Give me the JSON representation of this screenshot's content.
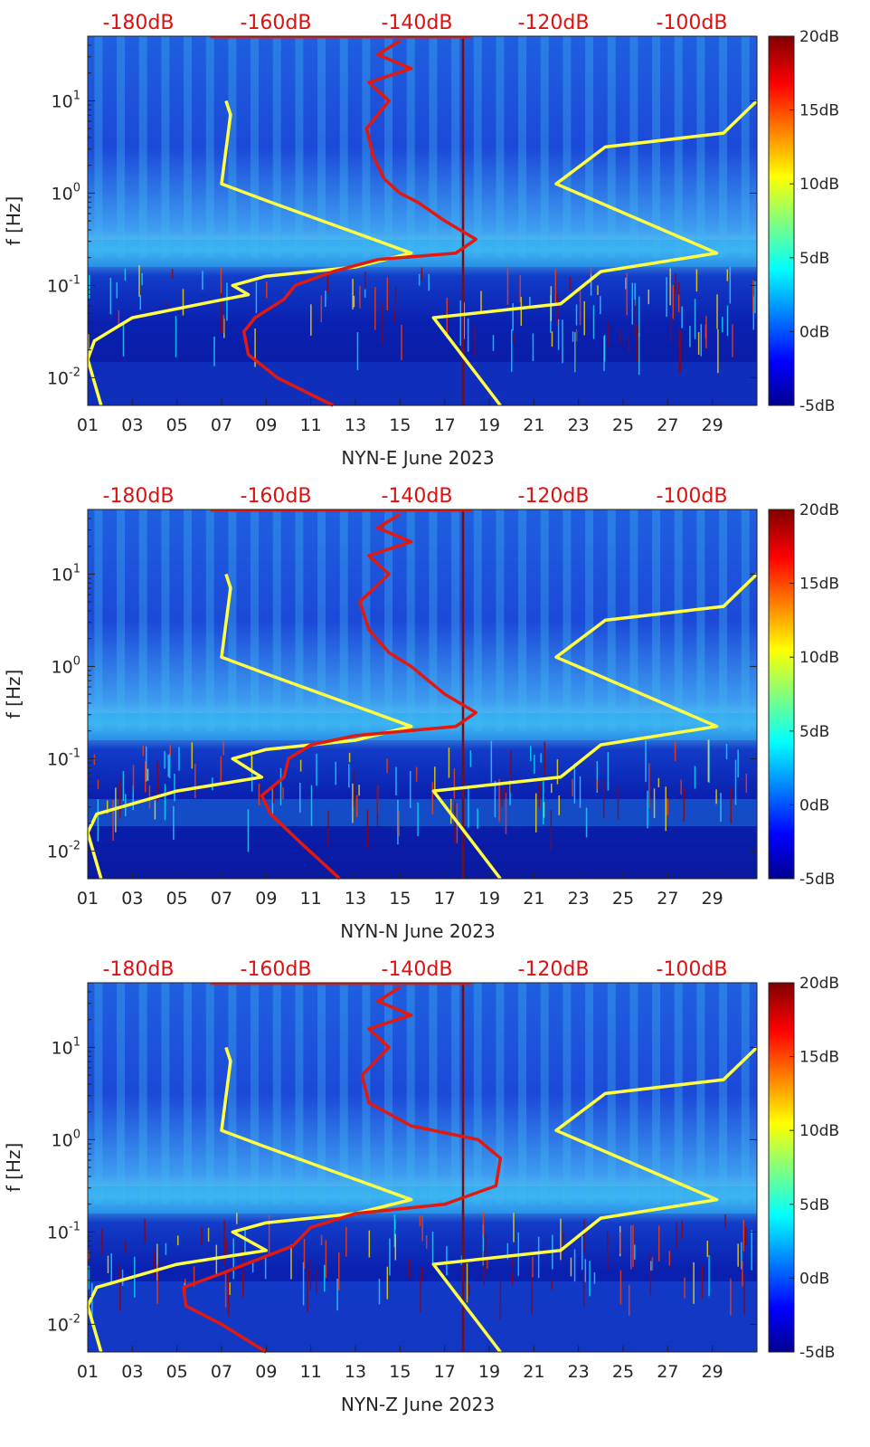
{
  "chart_data": [
    {
      "type": "heatmap",
      "xlabel": "NYN-E June 2023",
      "ylabel": "f [Hz]",
      "x_tick_labels": [
        "01",
        "03",
        "05",
        "07",
        "09",
        "11",
        "13",
        "15",
        "17",
        "19",
        "21",
        "23",
        "25",
        "27",
        "29"
      ],
      "y_tick_labels": [
        "10-2",
        "10-1",
        "100",
        "101"
      ],
      "top_axis_labels": [
        "-180dB",
        "-160dB",
        "-140dB",
        "-120dB",
        "-100dB"
      ],
      "colorbar": {
        "labels": [
          "20dB",
          "15dB",
          "10dB",
          "5dB",
          "0dB",
          "-5dB"
        ],
        "range": [
          -5,
          20
        ],
        "colormap": "jet"
      },
      "xlim": [
        1,
        31
      ],
      "ylim_log10": [
        -2.3,
        1.7
      ],
      "series": [
        {
          "color": "#ffff44",
          "points": [
            [
              7.2,
              1.0
            ],
            [
              7.4,
              0.85
            ],
            [
              7.0,
              0.1
            ],
            [
              9,
              -0.08
            ],
            [
              13.8,
              -0.5
            ],
            [
              15.5,
              -0.65
            ],
            [
              13,
              -0.8
            ],
            [
              9,
              -0.9
            ],
            [
              7.5,
              -1.0
            ],
            [
              8.2,
              -1.1
            ],
            [
              6.5,
              -1.18
            ],
            [
              3,
              -1.35
            ],
            [
              1.3,
              -1.6
            ],
            [
              1,
              -1.8
            ],
            [
              1.6,
              -2.3
            ]
          ]
        },
        {
          "color": "#ffff44",
          "points": [
            [
              31,
              1.0
            ],
            [
              29.5,
              0.65
            ],
            [
              24.2,
              0.5
            ],
            [
              22,
              0.1
            ],
            [
              29.2,
              -0.65
            ],
            [
              24,
              -0.85
            ],
            [
              22.2,
              -1.2
            ],
            [
              16.5,
              -1.35
            ],
            [
              19.5,
              -2.3
            ]
          ]
        },
        {
          "color": "#e01a10",
          "points": [
            [
              15,
              1.65
            ],
            [
              14,
              1.5
            ],
            [
              15.5,
              1.35
            ],
            [
              13.6,
              1.2
            ],
            [
              14.5,
              1.0
            ],
            [
              13.5,
              0.7
            ],
            [
              13.8,
              0.4
            ],
            [
              14.3,
              0.15
            ],
            [
              15,
              0.0
            ],
            [
              15.8,
              -0.1
            ],
            [
              17,
              -0.3
            ],
            [
              18.4,
              -0.5
            ],
            [
              17.5,
              -0.65
            ],
            [
              14,
              -0.72
            ],
            [
              12,
              -0.85
            ],
            [
              10.3,
              -1.0
            ],
            [
              9.8,
              -1.15
            ],
            [
              8.5,
              -1.35
            ],
            [
              8,
              -1.5
            ],
            [
              8.2,
              -1.75
            ],
            [
              9.5,
              -2.0
            ],
            [
              12,
              -2.3
            ]
          ]
        }
      ]
    },
    {
      "type": "heatmap",
      "xlabel": "NYN-N June 2023",
      "ylabel": "f [Hz]",
      "x_tick_labels": [
        "01",
        "03",
        "05",
        "07",
        "09",
        "11",
        "13",
        "15",
        "17",
        "19",
        "21",
        "23",
        "25",
        "27",
        "29"
      ],
      "y_tick_labels": [
        "10-2",
        "10-1",
        "100",
        "101"
      ],
      "top_axis_labels": [
        "-180dB",
        "-160dB",
        "-140dB",
        "-120dB",
        "-100dB"
      ],
      "colorbar": {
        "labels": [
          "20dB",
          "15dB",
          "10dB",
          "5dB",
          "0dB",
          "-5dB"
        ],
        "range": [
          -5,
          20
        ],
        "colormap": "jet"
      },
      "xlim": [
        1,
        31
      ],
      "ylim_log10": [
        -2.3,
        1.7
      ],
      "series": [
        {
          "color": "#ffff44",
          "points": [
            [
              7.2,
              1.0
            ],
            [
              7.4,
              0.85
            ],
            [
              7.0,
              0.1
            ],
            [
              9,
              -0.08
            ],
            [
              13.8,
              -0.5
            ],
            [
              15.5,
              -0.65
            ],
            [
              13,
              -0.8
            ],
            [
              9,
              -0.9
            ],
            [
              7.5,
              -1.0
            ],
            [
              8.8,
              -1.2
            ],
            [
              5,
              -1.35
            ],
            [
              1.4,
              -1.6
            ],
            [
              1,
              -1.8
            ],
            [
              1.6,
              -2.3
            ]
          ]
        },
        {
          "color": "#ffff44",
          "points": [
            [
              31,
              1.0
            ],
            [
              29.5,
              0.65
            ],
            [
              24.2,
              0.5
            ],
            [
              22,
              0.1
            ],
            [
              29.2,
              -0.65
            ],
            [
              24,
              -0.85
            ],
            [
              22.2,
              -1.2
            ],
            [
              16.5,
              -1.35
            ],
            [
              19.5,
              -2.3
            ]
          ]
        },
        {
          "color": "#e01a10",
          "points": [
            [
              15,
              1.65
            ],
            [
              14,
              1.5
            ],
            [
              15.5,
              1.35
            ],
            [
              13.6,
              1.2
            ],
            [
              14.5,
              1.0
            ],
            [
              13.2,
              0.7
            ],
            [
              13.6,
              0.4
            ],
            [
              14.5,
              0.15
            ],
            [
              15.5,
              0.0
            ],
            [
              17,
              -0.3
            ],
            [
              18.4,
              -0.5
            ],
            [
              17.5,
              -0.65
            ],
            [
              13,
              -0.75
            ],
            [
              11,
              -0.85
            ],
            [
              10,
              -1.0
            ],
            [
              9.8,
              -1.2
            ],
            [
              8.8,
              -1.4
            ],
            [
              9.2,
              -1.6
            ],
            [
              10.5,
              -1.9
            ],
            [
              12.3,
              -2.3
            ]
          ]
        }
      ]
    },
    {
      "type": "heatmap",
      "xlabel": "NYN-Z June 2023",
      "ylabel": "f [Hz]",
      "x_tick_labels": [
        "01",
        "03",
        "05",
        "07",
        "09",
        "11",
        "13",
        "15",
        "17",
        "19",
        "21",
        "23",
        "25",
        "27",
        "29"
      ],
      "y_tick_labels": [
        "10-2",
        "10-1",
        "100",
        "101"
      ],
      "top_axis_labels": [
        "-180dB",
        "-160dB",
        "-140dB",
        "-120dB",
        "-100dB"
      ],
      "colorbar": {
        "labels": [
          "20dB",
          "15dB",
          "10dB",
          "5dB",
          "0dB",
          "-5dB"
        ],
        "range": [
          -5,
          20
        ],
        "colormap": "jet"
      },
      "xlim": [
        1,
        31
      ],
      "ylim_log10": [
        -2.3,
        1.7
      ],
      "series": [
        {
          "color": "#ffff44",
          "points": [
            [
              7.2,
              1.0
            ],
            [
              7.4,
              0.85
            ],
            [
              7.0,
              0.1
            ],
            [
              9,
              -0.08
            ],
            [
              13.8,
              -0.5
            ],
            [
              15.5,
              -0.65
            ],
            [
              13,
              -0.8
            ],
            [
              9,
              -0.9
            ],
            [
              7.5,
              -1.0
            ],
            [
              9,
              -1.2
            ],
            [
              5,
              -1.35
            ],
            [
              1.4,
              -1.6
            ],
            [
              1,
              -1.8
            ],
            [
              1.6,
              -2.3
            ]
          ]
        },
        {
          "color": "#ffff44",
          "points": [
            [
              31,
              1.0
            ],
            [
              29.5,
              0.65
            ],
            [
              24.2,
              0.5
            ],
            [
              22,
              0.1
            ],
            [
              29.2,
              -0.65
            ],
            [
              24,
              -0.85
            ],
            [
              22.2,
              -1.2
            ],
            [
              16.5,
              -1.35
            ],
            [
              19.5,
              -2.3
            ]
          ]
        },
        {
          "color": "#e01a10",
          "points": [
            [
              15,
              1.65
            ],
            [
              14,
              1.5
            ],
            [
              15.5,
              1.35
            ],
            [
              13.6,
              1.2
            ],
            [
              14.5,
              1.0
            ],
            [
              13.3,
              0.7
            ],
            [
              13.6,
              0.4
            ],
            [
              15.5,
              0.15
            ],
            [
              18.5,
              0.0
            ],
            [
              19.5,
              -0.2
            ],
            [
              19.3,
              -0.5
            ],
            [
              17,
              -0.7
            ],
            [
              13,
              -0.8
            ],
            [
              11,
              -0.95
            ],
            [
              10.2,
              -1.15
            ],
            [
              7,
              -1.45
            ],
            [
              5.3,
              -1.6
            ],
            [
              5.4,
              -1.8
            ],
            [
              7,
              -2.0
            ],
            [
              9,
              -2.3
            ]
          ]
        }
      ]
    }
  ]
}
